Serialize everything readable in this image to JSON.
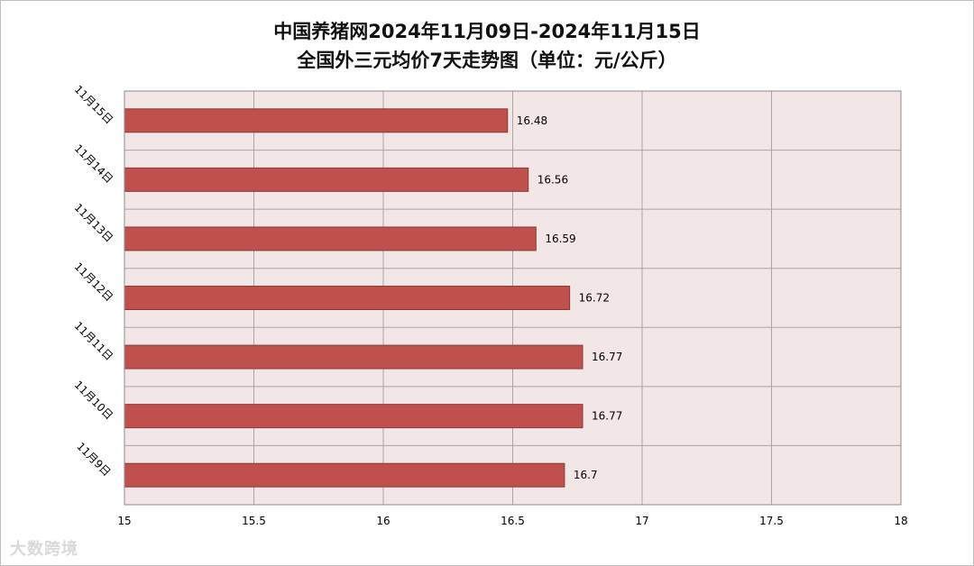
{
  "chart_data": {
    "type": "bar",
    "orientation": "horizontal",
    "title": "中国养猪网2024年11月09日-2024年11月15日",
    "subtitle": "全国外三元均价7天走势图（单位：元/公斤）",
    "categories": [
      "11月15日",
      "11月14日",
      "11月13日",
      "11月12日",
      "11月11日",
      "11月10日",
      "11月9日"
    ],
    "values": [
      16.48,
      16.56,
      16.59,
      16.72,
      16.77,
      16.77,
      16.7
    ],
    "value_labels": [
      "16.48",
      "16.56",
      "16.59",
      "16.72",
      "16.77",
      "16.77",
      "16.7"
    ],
    "xlim": [
      15,
      18
    ],
    "x_ticks": [
      "15",
      "15.5",
      "16",
      "16.5",
      "17",
      "17.5",
      "18"
    ],
    "grid": true,
    "legend": "none",
    "colors": {
      "bar": "#c0504d",
      "bar_border": "#8c3836",
      "plot_background": "#f2e6e6",
      "grid": "#a6a6a6"
    }
  },
  "watermark": "大数跨境"
}
